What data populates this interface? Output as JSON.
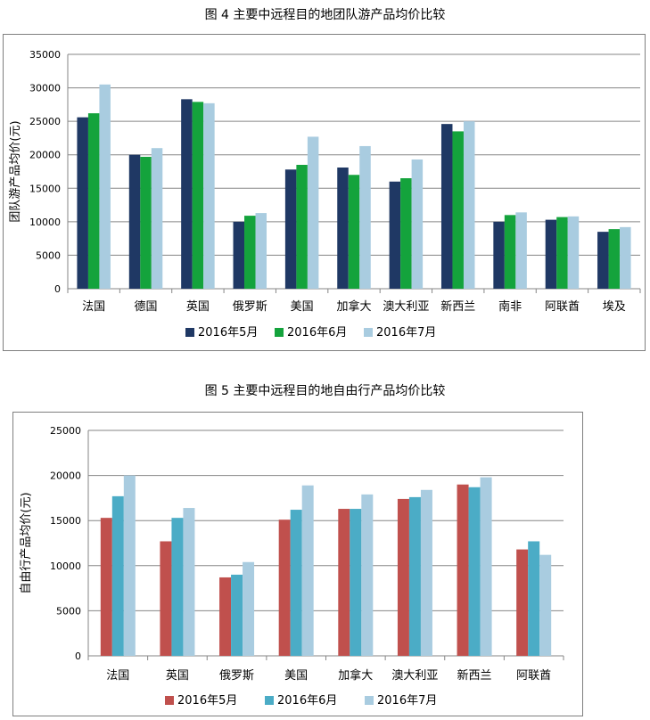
{
  "figures": {
    "fig4_title": "图 4   主要中远程目的地团队游产品均价比较",
    "fig5_title": "图 5  主要中远程目的地自由行产品均价比较"
  },
  "chart_data": [
    {
      "type": "bar",
      "title": "图 4   主要中远程目的地团队游产品均价比较",
      "ylabel": "团队游产品均价(元)",
      "xlabel": "",
      "ylim": [
        0,
        35000
      ],
      "yticks": [
        0,
        5000,
        10000,
        15000,
        20000,
        25000,
        30000,
        35000
      ],
      "grid": true,
      "legend_position": "bottom",
      "categories": [
        "法国",
        "德国",
        "英国",
        "俄罗斯",
        "美国",
        "加拿大",
        "澳大利亚",
        "新西兰",
        "南非",
        "阿联酋",
        "埃及"
      ],
      "series": [
        {
          "name": "2016年5月",
          "color": "#1f3864",
          "values": [
            25600,
            20000,
            28300,
            10000,
            17800,
            18100,
            16000,
            24600,
            10000,
            10300,
            8500
          ]
        },
        {
          "name": "2016年6月",
          "color": "#14a33c",
          "values": [
            26200,
            19700,
            27900,
            10900,
            18500,
            17000,
            16500,
            23500,
            11000,
            10700,
            8900
          ]
        },
        {
          "name": "2016年7月",
          "color": "#a9cce0",
          "values": [
            30500,
            21000,
            27700,
            11300,
            22700,
            21300,
            19300,
            25000,
            11400,
            10800,
            9200
          ]
        }
      ]
    },
    {
      "type": "bar",
      "title": "图 5  主要中远程目的地自由行产品均价比较",
      "ylabel": "自由行产品均价(元)",
      "xlabel": "",
      "ylim": [
        0,
        25000
      ],
      "yticks": [
        0,
        5000,
        10000,
        15000,
        20000,
        25000
      ],
      "grid": true,
      "legend_position": "bottom",
      "categories": [
        "法国",
        "英国",
        "俄罗斯",
        "美国",
        "加拿大",
        "澳大利亚",
        "新西兰",
        "阿联酋"
      ],
      "series": [
        {
          "name": "2016年5月",
          "color": "#c0504d",
          "values": [
            15300,
            12700,
            8700,
            15100,
            16300,
            17400,
            19000,
            11800
          ]
        },
        {
          "name": "2016年6月",
          "color": "#4bacc6",
          "values": [
            17700,
            15300,
            9000,
            16200,
            16300,
            17600,
            18700,
            12700
          ]
        },
        {
          "name": "2016年7月",
          "color": "#a9cce0",
          "values": [
            20000,
            16400,
            10400,
            18900,
            17900,
            18400,
            19800,
            11200
          ]
        }
      ]
    }
  ]
}
